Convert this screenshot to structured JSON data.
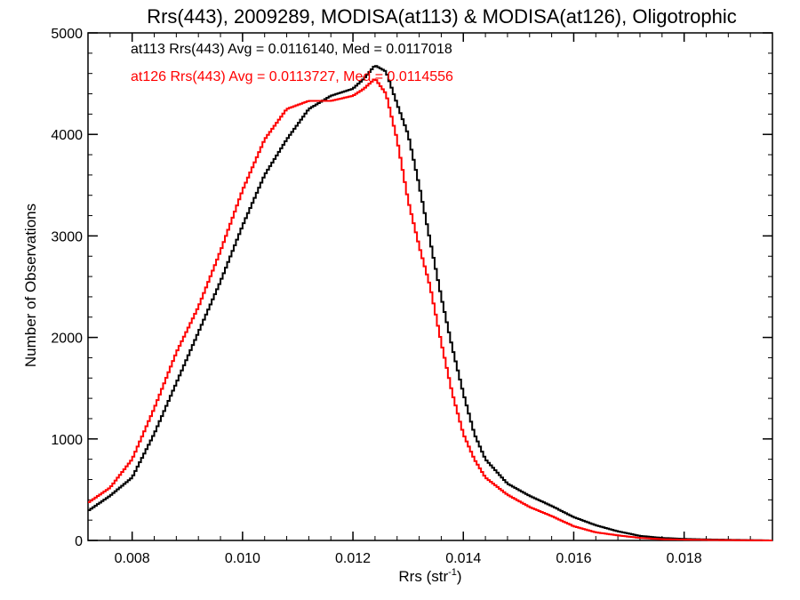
{
  "chart_data": {
    "type": "line",
    "style": "histogram-step",
    "title": "Rrs(443), 2009289, MODISA(at113) & MODISA(at126), Oligotrophic",
    "xlabel_main": "Rrs (str",
    "xlabel_sup": "-1",
    "xlabel_close": ")",
    "ylabel": "Number of Observations",
    "xlim": [
      0.0072,
      0.0196
    ],
    "ylim": [
      0,
      5000
    ],
    "x_ticks": [
      0.008,
      0.01,
      0.012,
      0.014,
      0.016,
      0.018
    ],
    "x_tick_labels": [
      "0.008",
      "0.010",
      "0.012",
      "0.014",
      "0.016",
      "0.018"
    ],
    "y_ticks": [
      0,
      1000,
      2000,
      3000,
      4000,
      5000
    ],
    "y_tick_labels": [
      "0",
      "1000",
      "2000",
      "3000",
      "4000",
      "5000"
    ],
    "grid": false,
    "legend": {
      "placement": "top-left",
      "entries": [
        {
          "text": "at113 Rrs(443) Avg = 0.0116140, Med = 0.0117018",
          "color": "#000000"
        },
        {
          "text": "at126 Rrs(443) Avg = 0.0113727, Med = 0.0114556",
          "color": "#ff0000"
        }
      ]
    },
    "series": [
      {
        "color": "#000000",
        "x": [
          0.0072,
          0.0076,
          0.008,
          0.0084,
          0.0088,
          0.0092,
          0.0096,
          0.01,
          0.0104,
          0.0108,
          0.0112,
          0.0116,
          0.012,
          0.0122,
          0.0124,
          0.0126,
          0.0128,
          0.013,
          0.0132,
          0.0134,
          0.0136,
          0.0138,
          0.014,
          0.0142,
          0.0144,
          0.0148,
          0.0152,
          0.0156,
          0.016,
          0.0164,
          0.0168,
          0.0172,
          0.0176,
          0.018,
          0.0186,
          0.0196
        ],
        "y": [
          290,
          440,
          620,
          1050,
          1550,
          2050,
          2550,
          3100,
          3600,
          3950,
          4250,
          4380,
          4450,
          4550,
          4680,
          4620,
          4300,
          4000,
          3500,
          2950,
          2400,
          1900,
          1450,
          1050,
          800,
          560,
          440,
          340,
          230,
          150,
          90,
          45,
          25,
          15,
          8,
          0
        ]
      },
      {
        "color": "#ff0000",
        "x": [
          0.0072,
          0.0076,
          0.008,
          0.0084,
          0.0088,
          0.0092,
          0.0096,
          0.01,
          0.0104,
          0.0108,
          0.0112,
          0.0116,
          0.012,
          0.0122,
          0.0124,
          0.0126,
          0.0128,
          0.013,
          0.0132,
          0.0134,
          0.0136,
          0.0138,
          0.014,
          0.0142,
          0.0144,
          0.0148,
          0.0152,
          0.0156,
          0.016,
          0.0164,
          0.0168,
          0.0172,
          0.0176,
          0.018,
          0.0186,
          0.0196
        ],
        "y": [
          370,
          520,
          800,
          1300,
          1850,
          2300,
          2850,
          3450,
          3950,
          4250,
          4330,
          4330,
          4380,
          4450,
          4550,
          4400,
          3950,
          3350,
          2900,
          2500,
          1950,
          1450,
          1050,
          800,
          620,
          450,
          330,
          240,
          140,
          80,
          50,
          25,
          12,
          8,
          4,
          0
        ]
      }
    ]
  }
}
